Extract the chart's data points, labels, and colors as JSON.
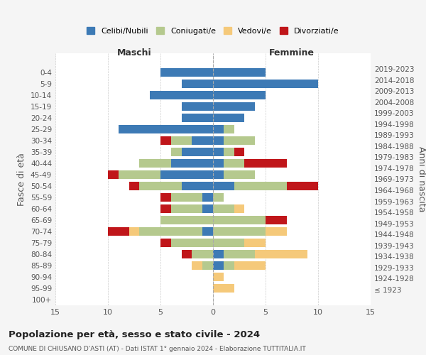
{
  "age_groups": [
    "100+",
    "95-99",
    "90-94",
    "85-89",
    "80-84",
    "75-79",
    "70-74",
    "65-69",
    "60-64",
    "55-59",
    "50-54",
    "45-49",
    "40-44",
    "35-39",
    "30-34",
    "25-29",
    "20-24",
    "15-19",
    "10-14",
    "5-9",
    "0-4"
  ],
  "birth_years": [
    "≤ 1923",
    "1924-1928",
    "1929-1933",
    "1934-1938",
    "1939-1943",
    "1944-1948",
    "1949-1953",
    "1954-1958",
    "1959-1963",
    "1964-1968",
    "1969-1973",
    "1974-1978",
    "1979-1983",
    "1984-1988",
    "1989-1993",
    "1994-1998",
    "1999-2003",
    "2004-2008",
    "2009-2013",
    "2014-2018",
    "2019-2023"
  ],
  "maschi": {
    "celibi": [
      0,
      0,
      0,
      0,
      0,
      0,
      1,
      0,
      1,
      1,
      3,
      5,
      4,
      3,
      2,
      9,
      3,
      3,
      6,
      3,
      5
    ],
    "coniugati": [
      0,
      0,
      0,
      1,
      2,
      4,
      6,
      5,
      3,
      3,
      4,
      4,
      3,
      1,
      2,
      0,
      0,
      0,
      0,
      0,
      0
    ],
    "vedovi": [
      0,
      0,
      0,
      1,
      0,
      0,
      1,
      0,
      0,
      0,
      0,
      0,
      0,
      0,
      0,
      0,
      0,
      0,
      0,
      0,
      0
    ],
    "divorziati": [
      0,
      0,
      0,
      0,
      1,
      1,
      2,
      0,
      1,
      1,
      1,
      1,
      0,
      0,
      1,
      0,
      0,
      0,
      0,
      0,
      0
    ]
  },
  "femmine": {
    "nubili": [
      0,
      0,
      0,
      1,
      1,
      0,
      0,
      0,
      0,
      0,
      2,
      1,
      1,
      1,
      1,
      1,
      3,
      4,
      5,
      10,
      5
    ],
    "coniugate": [
      0,
      0,
      0,
      1,
      3,
      3,
      5,
      5,
      2,
      1,
      5,
      3,
      2,
      1,
      3,
      1,
      0,
      0,
      0,
      0,
      0
    ],
    "vedove": [
      0,
      2,
      1,
      3,
      5,
      2,
      2,
      0,
      1,
      0,
      0,
      0,
      0,
      0,
      0,
      0,
      0,
      0,
      0,
      0,
      0
    ],
    "divorziate": [
      0,
      0,
      0,
      0,
      0,
      0,
      0,
      2,
      0,
      0,
      3,
      0,
      4,
      1,
      0,
      0,
      0,
      0,
      0,
      0,
      0
    ]
  },
  "colors": {
    "celibi_nubili": "#3d7ab5",
    "coniugati": "#b5c98e",
    "vedovi": "#f5c97a",
    "divorziati": "#c0161a"
  },
  "xlim": 15,
  "title": "Popolazione per età, sesso e stato civile - 2024",
  "subtitle": "COMUNE DI CHIUSANO D'ASTI (AT) - Dati ISTAT 1° gennaio 2024 - Elaborazione TUTTITALIA.IT",
  "ylabel_left": "Fasce di età",
  "ylabel_right": "Anni di nascita",
  "xlabel_maschi": "Maschi",
  "xlabel_femmine": "Femmine",
  "bg_color": "#f5f5f5",
  "plot_bg": "#ffffff"
}
